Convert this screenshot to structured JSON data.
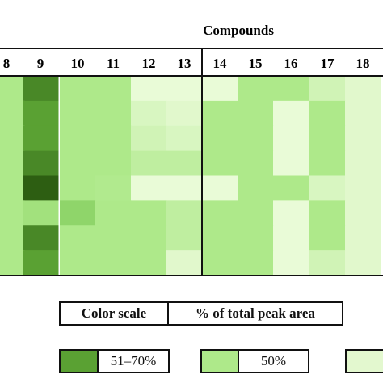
{
  "chart_data": {
    "type": "heatmap",
    "title": "Compounds",
    "x_categories": [
      "8",
      "9",
      "10",
      "11",
      "12",
      "13",
      "14",
      "15",
      "16",
      "17",
      "18"
    ],
    "rows": 8,
    "grid": false,
    "values": [
      [
        50,
        65,
        50,
        50,
        15,
        15,
        15,
        50,
        50,
        30,
        20
      ],
      [
        50,
        62,
        50,
        50,
        25,
        20,
        50,
        50,
        15,
        50,
        20
      ],
      [
        50,
        62,
        50,
        50,
        30,
        25,
        50,
        50,
        15,
        50,
        20
      ],
      [
        50,
        65,
        50,
        50,
        40,
        40,
        50,
        50,
        15,
        50,
        20
      ],
      [
        50,
        70,
        50,
        48,
        15,
        15,
        15,
        50,
        50,
        25,
        20
      ],
      [
        50,
        52,
        55,
        50,
        50,
        40,
        50,
        50,
        15,
        50,
        20
      ],
      [
        50,
        65,
        50,
        50,
        50,
        40,
        50,
        50,
        15,
        50,
        20
      ],
      [
        50,
        62,
        50,
        50,
        50,
        20,
        50,
        50,
        15,
        30,
        20
      ]
    ],
    "colors": {
      "scale_51_70": "#5aa133",
      "scale_50": "#aee98a",
      "low_light": "#e9fbd7",
      "dark_max": "#2d5e12",
      "line": "#111111"
    }
  },
  "legend": {
    "header_left": "Color scale",
    "header_right": "% of total peak area",
    "items": [
      {
        "label": "51–70%",
        "color": "#5aa133"
      },
      {
        "label": "50%",
        "color": "#aee98a"
      },
      {
        "label": "",
        "color": "#e3f8cf"
      }
    ]
  }
}
